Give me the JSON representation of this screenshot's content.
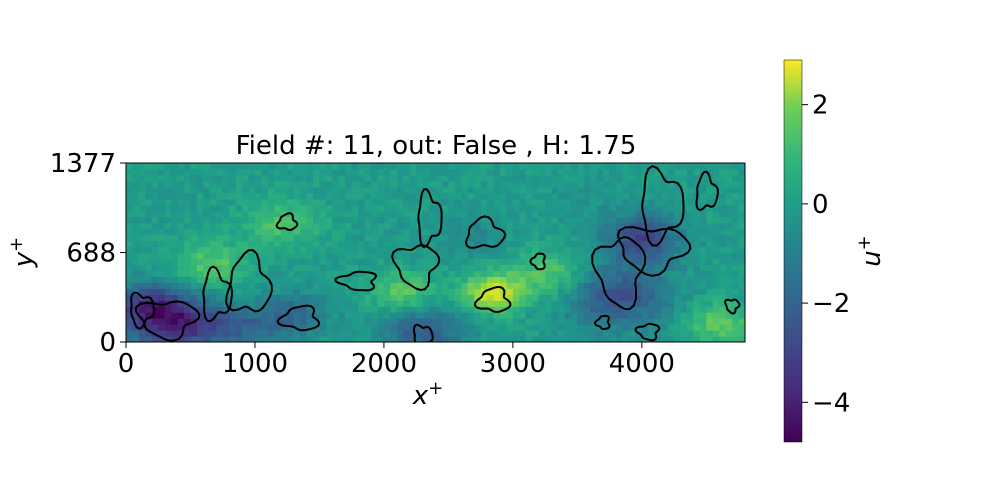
{
  "chart_data": {
    "type": "heatmap",
    "title": "Field #: 11, out: False , H: 1.75",
    "xlabel": "x",
    "xlabel_sup": "+",
    "ylabel": "y",
    "ylabel_sup": "+",
    "xlim": [
      0,
      4800
    ],
    "ylim": [
      0,
      1377
    ],
    "x_ticks": [
      0,
      1000,
      2000,
      3000,
      4000
    ],
    "x_tick_labels": [
      "0",
      "1000",
      "2000",
      "3000",
      "4000"
    ],
    "y_ticks": [
      0,
      688,
      1377
    ],
    "y_tick_labels": [
      "0",
      "688",
      "1377"
    ],
    "colorbar": {
      "label": "u",
      "label_sup": "+",
      "range": [
        -4.8,
        2.9
      ],
      "ticks": [
        2,
        0,
        -2,
        -4
      ],
      "tick_labels": [
        "2",
        "0",
        "−2",
        "−4"
      ],
      "colormap": "viridis"
    },
    "features": [
      {
        "x": 380,
        "y": 150,
        "r": 360,
        "v": -4.0
      },
      {
        "x": 150,
        "y": 300,
        "r": 260,
        "v": -2.5
      },
      {
        "x": 900,
        "y": 100,
        "r": 300,
        "v": -2.0
      },
      {
        "x": 1300,
        "y": 220,
        "r": 260,
        "v": -2.2
      },
      {
        "x": 2300,
        "y": 80,
        "r": 320,
        "v": -2.6
      },
      {
        "x": 2150,
        "y": 380,
        "r": 250,
        "v": 1.0
      },
      {
        "x": 2850,
        "y": 380,
        "r": 230,
        "v": 2.4
      },
      {
        "x": 3300,
        "y": 520,
        "r": 300,
        "v": 0.9
      },
      {
        "x": 3800,
        "y": 360,
        "r": 400,
        "v": -2.8
      },
      {
        "x": 4000,
        "y": 800,
        "r": 280,
        "v": -3.2
      },
      {
        "x": 4600,
        "y": 150,
        "r": 250,
        "v": 1.0
      },
      {
        "x": 1200,
        "y": 920,
        "r": 300,
        "v": 0.6
      },
      {
        "x": 2700,
        "y": 830,
        "r": 250,
        "v": -1.2
      },
      {
        "x": 650,
        "y": 600,
        "r": 280,
        "v": 0.9
      },
      {
        "x": 3600,
        "y": 1100,
        "r": 350,
        "v": -0.8
      }
    ],
    "contours": [
      {
        "x": 320,
        "y": 180,
        "rx": 220,
        "ry": 140
      },
      {
        "x": 120,
        "y": 250,
        "rx": 90,
        "ry": 120
      },
      {
        "x": 700,
        "y": 360,
        "rx": 110,
        "ry": 180
      },
      {
        "x": 950,
        "y": 440,
        "rx": 160,
        "ry": 220
      },
      {
        "x": 1350,
        "y": 180,
        "rx": 140,
        "ry": 90
      },
      {
        "x": 1800,
        "y": 470,
        "rx": 140,
        "ry": 70
      },
      {
        "x": 2250,
        "y": 590,
        "rx": 160,
        "ry": 160
      },
      {
        "x": 2300,
        "y": 40,
        "rx": 70,
        "ry": 90
      },
      {
        "x": 2350,
        "y": 950,
        "rx": 90,
        "ry": 190
      },
      {
        "x": 2780,
        "y": 830,
        "rx": 140,
        "ry": 110
      },
      {
        "x": 2850,
        "y": 320,
        "rx": 120,
        "ry": 90
      },
      {
        "x": 3200,
        "y": 620,
        "rx": 50,
        "ry": 60
      },
      {
        "x": 3830,
        "y": 550,
        "rx": 180,
        "ry": 260
      },
      {
        "x": 4080,
        "y": 720,
        "rx": 260,
        "ry": 170
      },
      {
        "x": 4150,
        "y": 1050,
        "rx": 160,
        "ry": 260
      },
      {
        "x": 4500,
        "y": 1150,
        "rx": 80,
        "ry": 130
      },
      {
        "x": 1250,
        "y": 920,
        "rx": 70,
        "ry": 60
      },
      {
        "x": 3700,
        "y": 150,
        "rx": 50,
        "ry": 50
      },
      {
        "x": 4050,
        "y": 80,
        "rx": 80,
        "ry": 60
      },
      {
        "x": 4700,
        "y": 280,
        "rx": 50,
        "ry": 50
      }
    ]
  }
}
